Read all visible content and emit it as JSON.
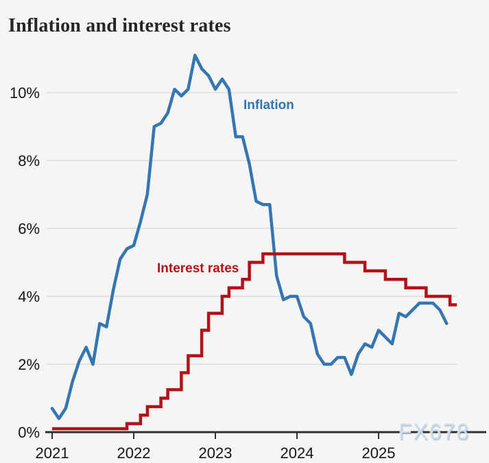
{
  "title": "Inflation and interest rates",
  "watermark": "FX678",
  "colors": {
    "background": "#f5f5f4",
    "grid": "#d8d8d8",
    "axis": "#303030",
    "axis_text": "#151515",
    "title": "#262626",
    "inflation": "#3476b4",
    "interest": "#b3121a",
    "watermark": "#cddcee"
  },
  "chart_data": {
    "type": "line",
    "title": "Inflation and interest rates",
    "grid": "horizontal",
    "legend_position": "inline-labels",
    "x_axis": {
      "ticks": [
        {
          "label": "2021",
          "t": 2021
        },
        {
          "label": "2022",
          "t": 2022
        },
        {
          "label": "2023",
          "t": 2023
        },
        {
          "label": "2024",
          "t": 2024
        },
        {
          "label": "2025",
          "t": 2025
        }
      ]
    },
    "y_axis": {
      "ticks": [
        {
          "label": "0%",
          "value": 0
        },
        {
          "label": "2%",
          "value": 2
        },
        {
          "label": "4%",
          "value": 4
        },
        {
          "label": "6%",
          "value": 6
        },
        {
          "label": "8%",
          "value": 8
        },
        {
          "label": "10%",
          "value": 10
        }
      ],
      "range": [
        0,
        11.5
      ]
    },
    "series": [
      {
        "name": "Inflation",
        "type": "line",
        "color": "#3476b4",
        "unit": "%",
        "start": "Jan 2021",
        "frequency": "monthly",
        "values": [
          0.7,
          0.4,
          0.7,
          1.5,
          2.1,
          2.5,
          2.0,
          3.2,
          3.1,
          4.2,
          5.1,
          5.4,
          5.5,
          6.2,
          7.0,
          9.0,
          9.1,
          9.4,
          10.1,
          9.9,
          10.1,
          11.1,
          10.7,
          10.5,
          10.1,
          10.4,
          10.1,
          8.7,
          8.7,
          7.9,
          6.8,
          6.7,
          6.7,
          4.6,
          3.9,
          4.0,
          4.0,
          3.4,
          3.2,
          2.3,
          2.0,
          2.0,
          2.2,
          2.2,
          1.7,
          2.3,
          2.6,
          2.5,
          3.0,
          2.8,
          2.6,
          3.5,
          3.4,
          3.6,
          3.8,
          3.8,
          3.8,
          3.6,
          3.2
        ]
      },
      {
        "name": "Interest rates",
        "type": "step",
        "color": "#b3121a",
        "unit": "%",
        "breakpoints": [
          {
            "date": "Jan 2021",
            "t": 2021.0,
            "value": 0.1
          },
          {
            "date": "Dec 2021",
            "t": 2021.917,
            "value": 0.25
          },
          {
            "date": "Feb 2022",
            "t": 2022.083,
            "value": 0.5
          },
          {
            "date": "Mar 2022",
            "t": 2022.167,
            "value": 0.75
          },
          {
            "date": "May 2022",
            "t": 2022.333,
            "value": 1.0
          },
          {
            "date": "Jun 2022",
            "t": 2022.417,
            "value": 1.25
          },
          {
            "date": "Aug 2022",
            "t": 2022.583,
            "value": 1.75
          },
          {
            "date": "Sep 2022",
            "t": 2022.667,
            "value": 2.25
          },
          {
            "date": "Nov 2022",
            "t": 2022.833,
            "value": 3.0
          },
          {
            "date": "Dec 2022",
            "t": 2022.917,
            "value": 3.5
          },
          {
            "date": "Feb 2023",
            "t": 2023.083,
            "value": 4.0
          },
          {
            "date": "Mar 2023",
            "t": 2023.167,
            "value": 4.25
          },
          {
            "date": "May 2023",
            "t": 2023.333,
            "value": 4.5
          },
          {
            "date": "Jun 2023",
            "t": 2023.417,
            "value": 5.0
          },
          {
            "date": "Aug 2023",
            "t": 2023.583,
            "value": 5.25
          },
          {
            "date": "Aug 2024",
            "t": 2024.583,
            "value": 5.0
          },
          {
            "date": "Nov 2024",
            "t": 2024.833,
            "value": 4.75
          },
          {
            "date": "Feb 2025",
            "t": 2025.083,
            "value": 4.5
          },
          {
            "date": "May 2025",
            "t": 2025.333,
            "value": 4.25
          },
          {
            "date": "Aug 2025",
            "t": 2025.583,
            "value": 4.0
          },
          {
            "date": "Dec 2025",
            "t": 2025.875,
            "value": 3.75
          }
        ],
        "end_t": 2025.96
      }
    ]
  }
}
